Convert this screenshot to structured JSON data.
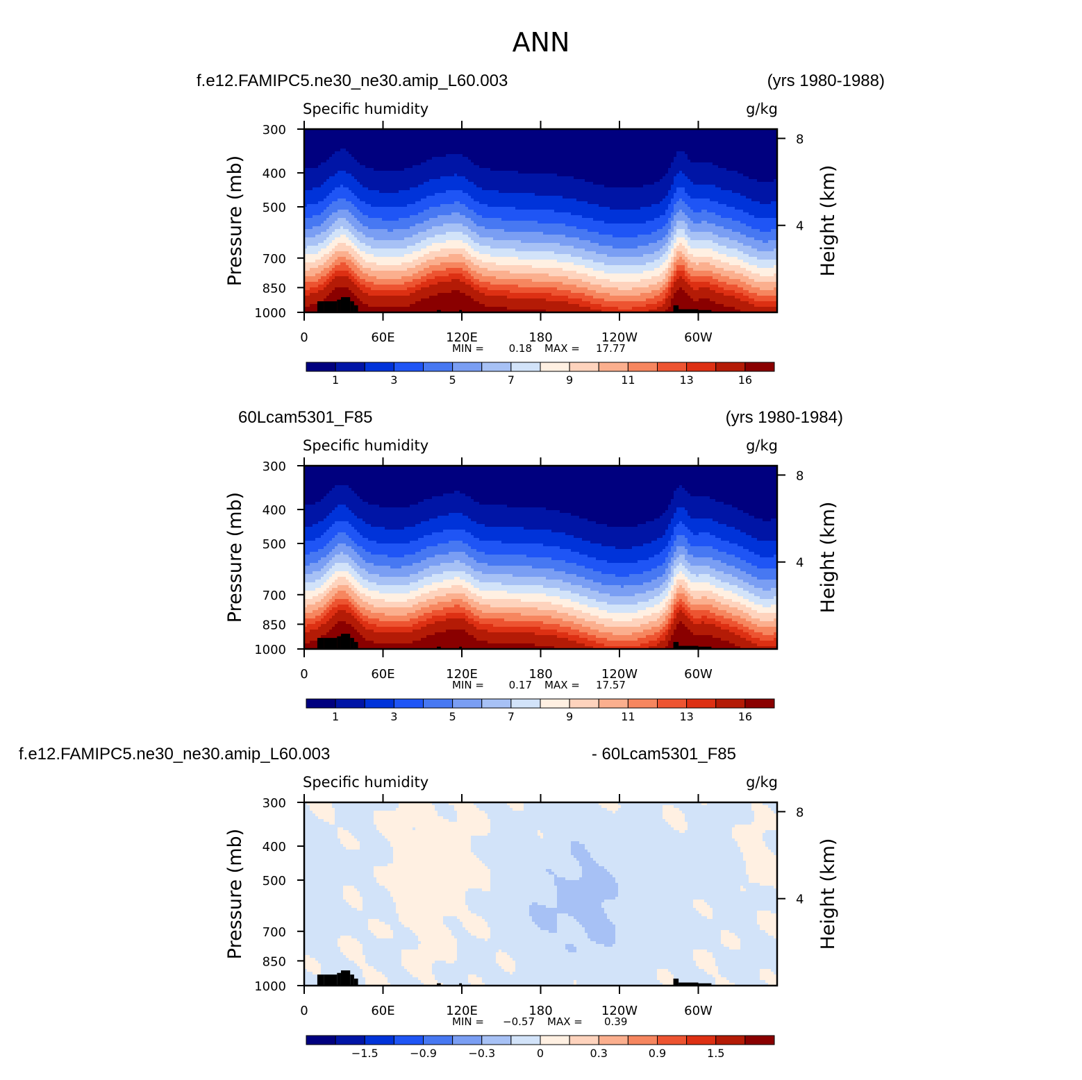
{
  "page": {
    "title": "ANN"
  },
  "colors": {
    "levels": [
      "#00007f",
      "#0015a6",
      "#0033d9",
      "#1f55f5",
      "#4778f2",
      "#7a9ef3",
      "#a7c1f5",
      "#d2e3f9",
      "#fff0e2",
      "#fed3bd",
      "#fbaf8e",
      "#f6865f",
      "#ed5431",
      "#dd3013",
      "#b41b06",
      "#8a0000"
    ],
    "topography": "#000000",
    "frame": "#000000"
  },
  "chart_data": [
    {
      "type": "contour",
      "case_title": "f.e12.FAMIPC5.ne30_ne30.amip_L60.003",
      "years": "(yrs 1980-1988)",
      "variable": "Specific humidity",
      "units": "g/kg",
      "ylabel": "Pressure (mb)",
      "ylabel_right": "Height (km)",
      "yticks": [
        "300",
        "400",
        "500",
        "700",
        "850",
        "1000"
      ],
      "ytick_values": [
        300,
        400,
        500,
        700,
        850,
        1000
      ],
      "yticks_right": [
        "8",
        "4"
      ],
      "yticks_right_values": [
        8,
        4
      ],
      "xticks": [
        "0",
        "60E",
        "120E",
        "180",
        "120W",
        "60W"
      ],
      "xtick_values": [
        0,
        60,
        120,
        180,
        240,
        300
      ],
      "xlim": [
        0,
        360
      ],
      "ylim": [
        300,
        1000
      ],
      "min_label": "MIN =",
      "min_value": "0.18",
      "max_label": "MAX =",
      "max_value": "17.77",
      "colorbar_labels": [
        "1",
        "3",
        "5",
        "7",
        "9",
        "11",
        "13",
        "16"
      ],
      "field": "humidity"
    },
    {
      "type": "contour",
      "case_title": "60Lcam5301_F85",
      "years": "(yrs 1980-1984)",
      "variable": "Specific humidity",
      "units": "g/kg",
      "ylabel": "Pressure (mb)",
      "ylabel_right": "Height (km)",
      "yticks": [
        "300",
        "400",
        "500",
        "700",
        "850",
        "1000"
      ],
      "ytick_values": [
        300,
        400,
        500,
        700,
        850,
        1000
      ],
      "yticks_right": [
        "8",
        "4"
      ],
      "yticks_right_values": [
        8,
        4
      ],
      "xticks": [
        "0",
        "60E",
        "120E",
        "180",
        "120W",
        "60W"
      ],
      "xtick_values": [
        0,
        60,
        120,
        180,
        240,
        300
      ],
      "xlim": [
        0,
        360
      ],
      "ylim": [
        300,
        1000
      ],
      "min_label": "MIN =",
      "min_value": "0.17",
      "max_label": "MAX =",
      "max_value": "17.57",
      "colorbar_labels": [
        "1",
        "3",
        "5",
        "7",
        "9",
        "11",
        "13",
        "16"
      ],
      "field": "humidity"
    },
    {
      "type": "contour",
      "case_title": "f.e12.FAMIPC5.ne30_ne30.amip_L60.003",
      "years": "- 60Lcam5301_F85",
      "variable": "Specific humidity",
      "units": "g/kg",
      "ylabel": "Pressure (mb)",
      "ylabel_right": "Height (km)",
      "yticks": [
        "300",
        "400",
        "500",
        "700",
        "850",
        "1000"
      ],
      "ytick_values": [
        300,
        400,
        500,
        700,
        850,
        1000
      ],
      "yticks_right": [
        "8",
        "4"
      ],
      "yticks_right_values": [
        8,
        4
      ],
      "xticks": [
        "0",
        "60E",
        "120E",
        "180",
        "120W",
        "60W"
      ],
      "xtick_values": [
        0,
        60,
        120,
        180,
        240,
        300
      ],
      "xlim": [
        0,
        360
      ],
      "ylim": [
        300,
        1000
      ],
      "min_label": "MIN =",
      "min_value": "−0.57",
      "max_label": "MAX =",
      "max_value": "0.39",
      "colorbar_labels": [
        "−1.5",
        "−0.9",
        "−0.3",
        "0",
        "0.3",
        "0.9",
        "1.5"
      ],
      "field": "difference"
    }
  ]
}
